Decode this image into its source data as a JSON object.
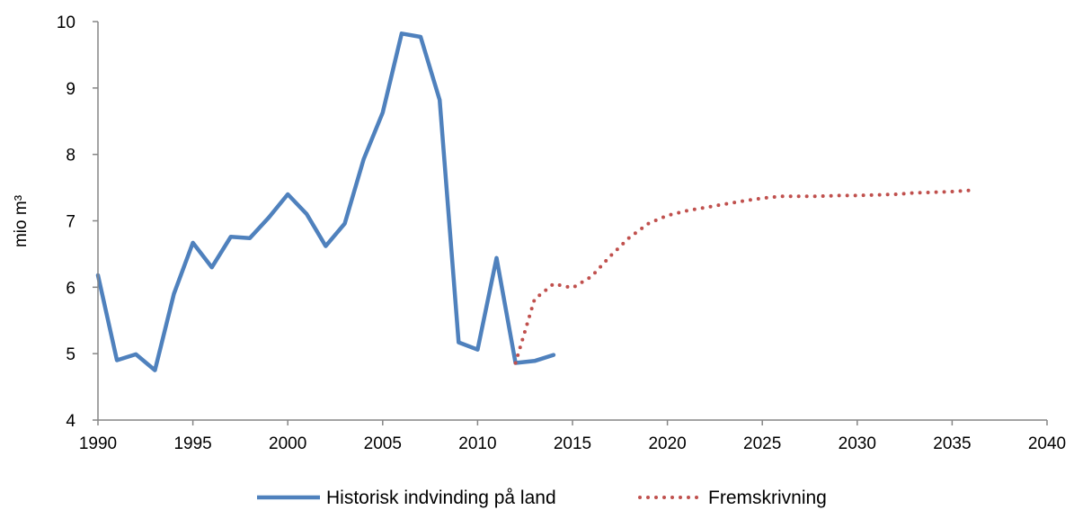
{
  "chart_data": {
    "type": "line",
    "title": "",
    "xlabel": "",
    "ylabel": "mio m³",
    "xlim": [
      1990,
      2040
    ],
    "ylim": [
      4,
      10
    ],
    "xticks": [
      "1990",
      "1995",
      "2000",
      "2005",
      "2010",
      "2015",
      "2020",
      "2025",
      "2030",
      "2035",
      "2040"
    ],
    "yticks": [
      "4",
      "5",
      "6",
      "7",
      "8",
      "9",
      "10"
    ],
    "grid": false,
    "legend_position": "bottom",
    "series": [
      {
        "name": "Historisk indvinding på land",
        "color": "#4f81bd",
        "style": "solid",
        "x": [
          1990,
          1991,
          1992,
          1993,
          1994,
          1995,
          1996,
          1997,
          1998,
          1999,
          2000,
          2001,
          2002,
          2003,
          2004,
          2005,
          2006,
          2007,
          2008,
          2009,
          2010,
          2011,
          2012,
          2013,
          2014
        ],
        "y": [
          6.18,
          4.9,
          4.99,
          4.75,
          5.9,
          6.67,
          6.3,
          6.76,
          6.74,
          7.05,
          7.4,
          7.1,
          6.62,
          6.96,
          7.93,
          8.63,
          9.82,
          9.77,
          8.82,
          5.17,
          5.06,
          6.44,
          4.86,
          4.89,
          4.98
        ]
      },
      {
        "name": "Fremskrivning",
        "color": "#c0504d",
        "style": "dotted",
        "x": [
          2012,
          2013,
          2014,
          2015,
          2016,
          2017,
          2018,
          2019,
          2020,
          2021,
          2022,
          2023,
          2024,
          2025,
          2026,
          2027,
          2028,
          2029,
          2030,
          2031,
          2032,
          2033,
          2034,
          2035,
          2036
        ],
        "y": [
          4.86,
          5.82,
          6.05,
          5.99,
          6.16,
          6.47,
          6.75,
          6.96,
          7.08,
          7.15,
          7.2,
          7.25,
          7.3,
          7.34,
          7.37,
          7.37,
          7.37,
          7.38,
          7.38,
          7.39,
          7.4,
          7.42,
          7.43,
          7.44,
          7.46
        ]
      }
    ]
  }
}
